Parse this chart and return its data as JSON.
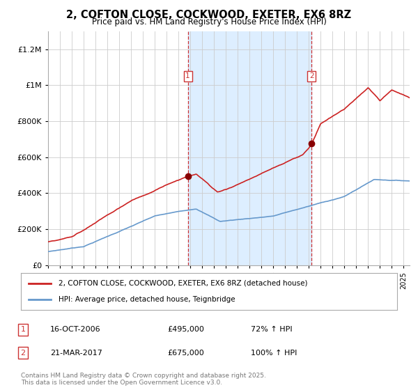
{
  "title": "2, COFTON CLOSE, COCKWOOD, EXETER, EX6 8RZ",
  "subtitle": "Price paid vs. HM Land Registry's House Price Index (HPI)",
  "ylim": [
    0,
    1300000
  ],
  "sale1_date": "16-OCT-2006",
  "sale1_price": 495000,
  "sale1_label": "72% ↑ HPI",
  "sale2_date": "21-MAR-2017",
  "sale2_price": 675000,
  "sale2_label": "100% ↑ HPI",
  "sale1_x": 2006.79,
  "sale2_x": 2017.22,
  "line1_color": "#cc2222",
  "line2_color": "#6699cc",
  "shade_color": "#ddeeff",
  "vline_color": "#cc3333",
  "grid_color": "#cccccc",
  "legend1": "2, COFTON CLOSE, COCKWOOD, EXETER, EX6 8RZ (detached house)",
  "legend2": "HPI: Average price, detached house, Teignbridge",
  "footer": "Contains HM Land Registry data © Crown copyright and database right 2025.\nThis data is licensed under the Open Government Licence v3.0.",
  "bg_color": "#ffffff",
  "plot_bg_color": "#ffffff"
}
